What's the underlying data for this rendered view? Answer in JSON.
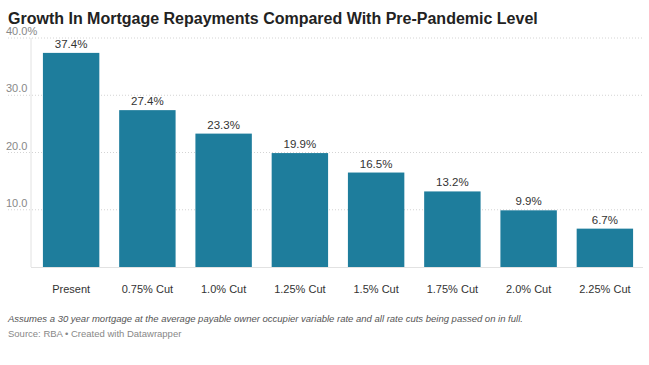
{
  "chart_data": {
    "type": "bar",
    "title": "Growth In Mortgage Repayments Compared With Pre-Pandemic Level",
    "categories": [
      "Present",
      "0.75% Cut",
      "1.0% Cut",
      "1.25% Cut",
      "1.5% Cut",
      "1.75% Cut",
      "2.0% Cut",
      "2.25% Cut"
    ],
    "values": [
      37.4,
      27.4,
      23.3,
      19.9,
      16.5,
      13.2,
      9.9,
      6.7
    ],
    "value_labels": [
      "37.4%",
      "27.4%",
      "23.3%",
      "19.9%",
      "16.5%",
      "13.2%",
      "9.9%",
      "6.7%"
    ],
    "color": "#1e7d9c",
    "ylim": [
      0,
      40
    ],
    "yticks": [
      {
        "value": 10,
        "label": "10.0"
      },
      {
        "value": 20,
        "label": "20.0"
      },
      {
        "value": 30,
        "label": "30.0"
      },
      {
        "value": 40,
        "label": "40.0%"
      }
    ],
    "grid": true,
    "data_labels": true,
    "annotations": [
      "Assumes a 30 year mortgage at the average payable owner occupier variable rate and all rate cuts being passed on in full.",
      "Source: RBA • Created with Datawrapper"
    ]
  }
}
